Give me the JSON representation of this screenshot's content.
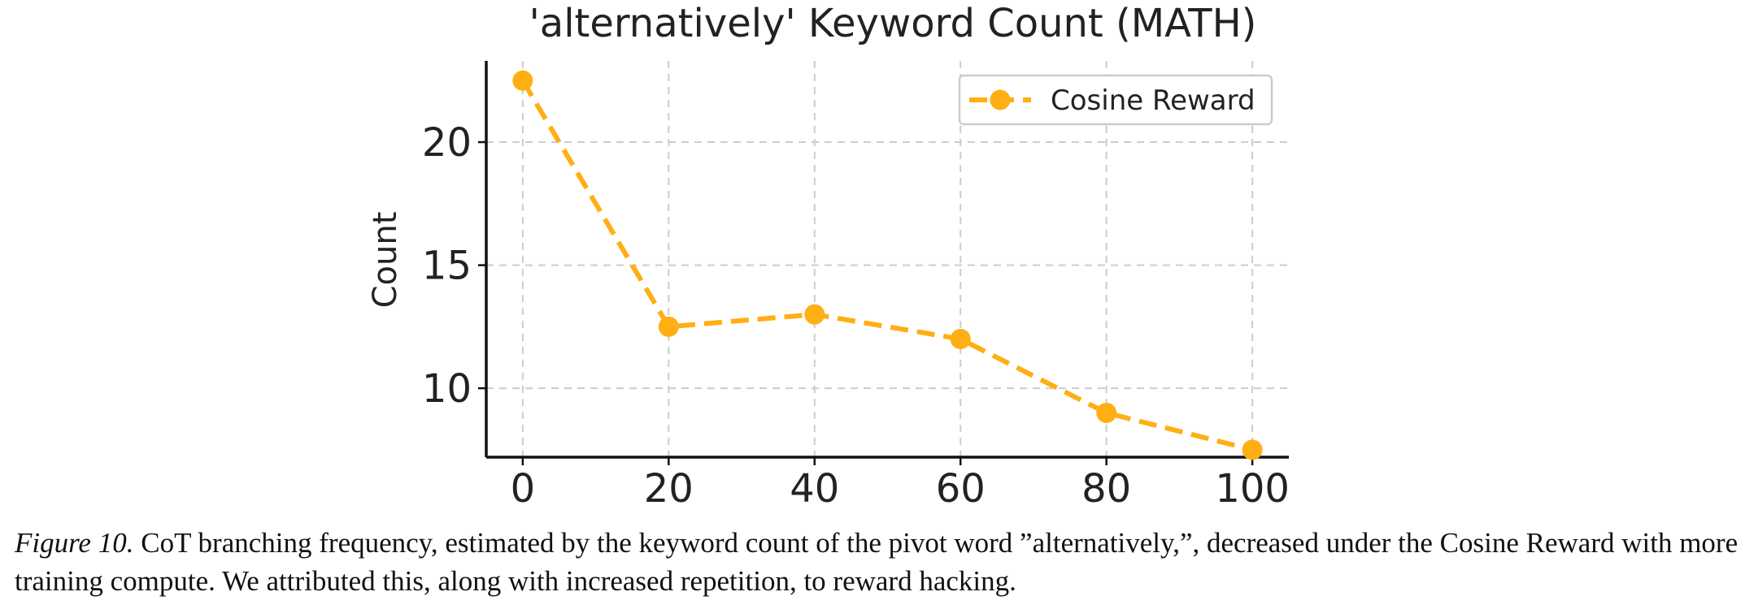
{
  "chart_data": {
    "type": "line",
    "title": "'alternatively' Keyword Count (MATH)",
    "xlabel": "",
    "ylabel": "Count",
    "x": [
      0,
      20,
      40,
      60,
      80,
      100
    ],
    "xticks": [
      0,
      20,
      40,
      60,
      80,
      100
    ],
    "yticks": [
      10,
      15,
      20
    ],
    "xlim": [
      -5,
      105
    ],
    "ylim": [
      7.2,
      23.3
    ],
    "grid": true,
    "legend_position": "top-right",
    "series": [
      {
        "name": "Cosine Reward",
        "values": [
          22.5,
          12.5,
          13,
          12,
          9,
          7.5
        ],
        "color": "#FFAE14",
        "line_style": "dashed",
        "marker": "circle"
      }
    ]
  },
  "caption": {
    "label": "Figure 10.",
    "text": "CoT branching frequency, estimated by the keyword count of the pivot word ”alternatively,”, decreased under the Cosine Reward with more training compute. We attributed this, along with increased repetition, to reward hacking."
  }
}
